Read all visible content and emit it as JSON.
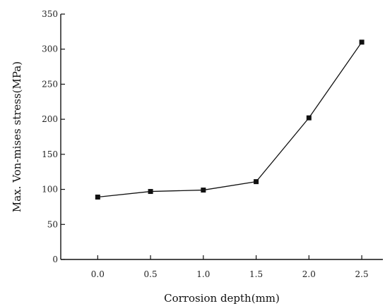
{
  "chart_data": {
    "type": "line",
    "title": "",
    "xlabel": "Corrosion depth(mm)",
    "ylabel": "Max. Von-mises stress(MPa)",
    "x": [
      0.0,
      0.5,
      1.0,
      1.5,
      2.0,
      2.5
    ],
    "x_tick_labels": [
      "0.0",
      "0.5",
      "1.0",
      "1.5",
      "2.0",
      "2.5"
    ],
    "y_ticks": [
      0,
      50,
      100,
      150,
      200,
      250,
      300,
      350
    ],
    "y_tick_labels": [
      "0",
      "50",
      "100",
      "150",
      "200",
      "250",
      "300",
      "350"
    ],
    "xlim": [
      -0.35,
      2.7
    ],
    "ylim": [
      0,
      350
    ],
    "grid": false,
    "legend": "none",
    "series": [
      {
        "values": [
          89,
          97,
          99,
          111,
          202,
          310
        ],
        "marker": "square",
        "color": "#111111"
      }
    ]
  }
}
